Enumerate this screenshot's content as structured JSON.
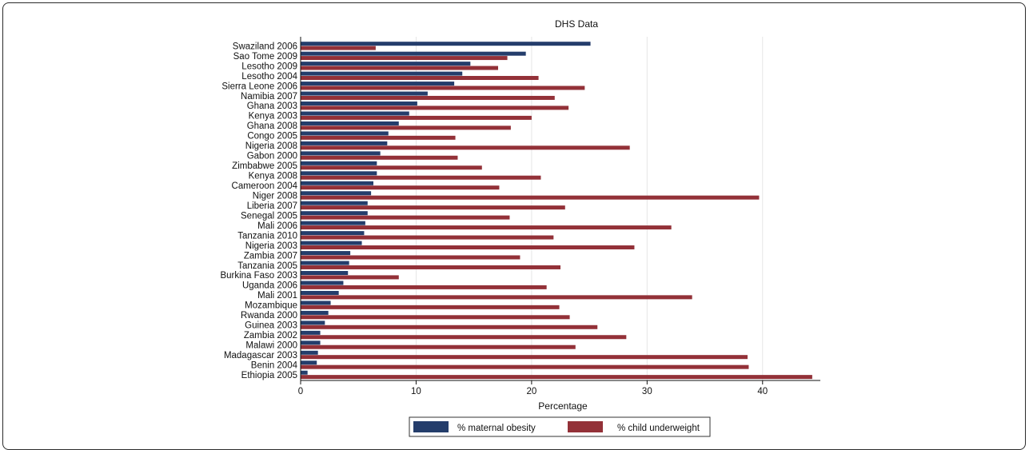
{
  "chart_data": {
    "type": "bar",
    "orientation": "horizontal",
    "title": "DHS Data",
    "xlabel": "Percentage",
    "ylabel": "",
    "xlim": [
      0,
      45
    ],
    "xticks": [
      0,
      10,
      20,
      30,
      40
    ],
    "grid": true,
    "legend_position": "bottom",
    "categories": [
      "Swaziland 2006",
      "Sao Tome 2009",
      "Lesotho 2009",
      "Lesotho 2004",
      "Sierra Leone 2006",
      "Namibia 2007",
      "Ghana 2003",
      "Kenya 2003",
      "Ghana 2008",
      "Congo 2005",
      "Nigeria 2008",
      "Gabon 2000",
      "Zimbabwe 2005",
      "Kenya 2008",
      "Cameroon 2004",
      "Niger 2008",
      "Liberia 2007",
      "Senegal 2005",
      "Mali 2006",
      "Tanzania 2010",
      "Nigeria 2003",
      "Zambia 2007",
      "Tanzania 2005",
      "Burkina Faso 2003",
      "Uganda 2006",
      "Mali 2001",
      "Mozambique",
      "Rwanda 2000",
      "Guinea 2003",
      "Zambia 2002",
      "Malawi 2000",
      "Madagascar 2003",
      "Benin 2004",
      "Ethiopia 2005"
    ],
    "series": [
      {
        "name": "% maternal obesity",
        "color": "#243d6b",
        "values": [
          25.1,
          19.5,
          14.7,
          14.0,
          13.3,
          11.0,
          10.1,
          9.4,
          8.5,
          7.6,
          7.5,
          6.9,
          6.6,
          6.6,
          6.3,
          6.1,
          5.8,
          5.8,
          5.6,
          5.5,
          5.3,
          4.3,
          4.2,
          4.1,
          3.7,
          3.3,
          2.6,
          2.4,
          2.1,
          1.7,
          1.7,
          1.5,
          1.4,
          0.6
        ]
      },
      {
        "name": "% child underweight",
        "color": "#933138",
        "values": [
          6.5,
          17.9,
          17.1,
          20.6,
          24.6,
          22.0,
          23.2,
          20.0,
          18.2,
          13.4,
          28.5,
          13.6,
          15.7,
          20.8,
          17.2,
          39.7,
          22.9,
          18.1,
          32.1,
          21.9,
          28.9,
          19.0,
          22.5,
          8.5,
          21.3,
          33.9,
          22.4,
          23.3,
          25.7,
          28.2,
          23.8,
          38.7,
          38.8,
          44.3
        ]
      }
    ]
  }
}
